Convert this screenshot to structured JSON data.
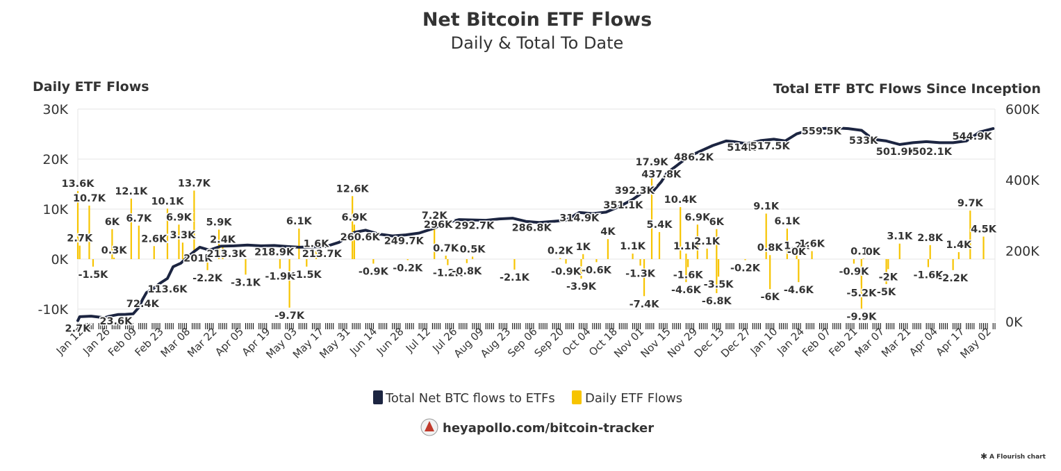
{
  "title": "Net Bitcoin ETF Flows",
  "subtitle": "Daily & Total To Date",
  "footer_link": "heyapollo.com/bitcoin-tracker",
  "credit": "A Flourish chart",
  "colors": {
    "daily": "#f7c400",
    "total": "#1c2541",
    "grid": "#e6e6e6",
    "text": "#333333"
  },
  "legend": [
    {
      "label": "Total Net BTC flows to ETFs",
      "color": "#1c2541"
    },
    {
      "label": "Daily ETF Flows",
      "color": "#f7c400"
    }
  ],
  "chart_data": {
    "type": "bar+line",
    "x_axis": {
      "type": "date",
      "range": [
        "2024-01-11",
        "2025-05-06"
      ],
      "tick_labels": [
        "Jan 12",
        "Jan 26",
        "Feb 09",
        "Feb 23",
        "Mar 08",
        "Mar 22",
        "Apr 05",
        "Apr 19",
        "May 03",
        "May 17",
        "May 31",
        "Jun 14",
        "Jun 28",
        "Jul 12",
        "Jul 26",
        "Aug 09",
        "Aug 23",
        "Sep 06",
        "Sep 20",
        "Oct 04",
        "Oct 18",
        "Nov 01",
        "Nov 15",
        "Nov 29",
        "Dec 13",
        "Dec 27",
        "Jan 10",
        "Jan 24",
        "Feb 07",
        "Feb 21",
        "Mar 07",
        "Mar 21",
        "Apr 04",
        "Apr 17",
        "May 02"
      ]
    },
    "y_left": {
      "label": "Daily ETF Flows",
      "range": [
        -12500,
        30000
      ],
      "ticks": [
        "-10K",
        "0K",
        "10K",
        "20K",
        "30K"
      ]
    },
    "y_right": {
      "label": "Total ETF BTC Flows Since Inception",
      "range": [
        0,
        600000
      ],
      "ticks": [
        "0K",
        "200K",
        "400K",
        "600K"
      ]
    },
    "daily_labels": [
      {
        "date": "2024-01-11",
        "value": 13600,
        "text": "13.6K"
      },
      {
        "date": "2024-01-12",
        "value": 2700,
        "text": "2.7K"
      },
      {
        "date": "2024-01-17",
        "value": 10700,
        "text": "10.7K"
      },
      {
        "date": "2024-01-19",
        "value": -1500,
        "text": "-1.5K"
      },
      {
        "date": "2024-01-29",
        "value": 6000,
        "text": "6K"
      },
      {
        "date": "2024-01-30",
        "value": 300,
        "text": "0.3K"
      },
      {
        "date": "2024-02-08",
        "value": 12100,
        "text": "12.1K"
      },
      {
        "date": "2024-02-12",
        "value": 6700,
        "text": "6.7K"
      },
      {
        "date": "2024-02-20",
        "value": 2600,
        "text": "2.6K"
      },
      {
        "date": "2024-02-27",
        "value": 10100,
        "text": "10.1K"
      },
      {
        "date": "2024-03-04",
        "value": 6900,
        "text": "6.9K"
      },
      {
        "date": "2024-03-06",
        "value": 3300,
        "text": "3.3K"
      },
      {
        "date": "2024-03-12",
        "value": 13700,
        "text": "13.7K"
      },
      {
        "date": "2024-03-19",
        "value": -2200,
        "text": "-2.2K"
      },
      {
        "date": "2024-03-25",
        "value": 5900,
        "text": "5.9K"
      },
      {
        "date": "2024-03-27",
        "value": 2400,
        "text": "2.4K"
      },
      {
        "date": "2024-04-08",
        "value": -3100,
        "text": "-3.1K"
      },
      {
        "date": "2024-04-26",
        "value": -1900,
        "text": "-1.9K"
      },
      {
        "date": "2024-05-06",
        "value": 6100,
        "text": "6.1K"
      },
      {
        "date": "2024-05-01",
        "value": -9700,
        "text": "-9.7K"
      },
      {
        "date": "2024-05-10",
        "value": -1500,
        "text": "-1.5K"
      },
      {
        "date": "2024-05-15",
        "value": 1600,
        "text": "1.6K"
      },
      {
        "date": "2024-06-03",
        "value": 12600,
        "text": "12.6K"
      },
      {
        "date": "2024-06-04",
        "value": 6900,
        "text": "6.9K"
      },
      {
        "date": "2024-06-14",
        "value": -900,
        "text": "-0.9K"
      },
      {
        "date": "2024-07-02",
        "value": -200,
        "text": "-0.2K"
      },
      {
        "date": "2024-07-16",
        "value": 7200,
        "text": "7.2K"
      },
      {
        "date": "2024-07-22",
        "value": 700,
        "text": "0.7K"
      },
      {
        "date": "2024-07-23",
        "value": -1200,
        "text": "-1.2K"
      },
      {
        "date": "2024-08-02",
        "value": -800,
        "text": "-0.8K"
      },
      {
        "date": "2024-08-05",
        "value": 500,
        "text": "0.5K"
      },
      {
        "date": "2024-08-27",
        "value": -2100,
        "text": "-2.1K"
      },
      {
        "date": "2024-09-20",
        "value": 200,
        "text": "0.2K"
      },
      {
        "date": "2024-09-23",
        "value": -900,
        "text": "-0.9K"
      },
      {
        "date": "2024-10-02",
        "value": 1000,
        "text": "1K"
      },
      {
        "date": "2024-10-01",
        "value": -3900,
        "text": "-3.9K"
      },
      {
        "date": "2024-10-09",
        "value": -600,
        "text": "-0.6K"
      },
      {
        "date": "2024-10-15",
        "value": 4000,
        "text": "4K"
      },
      {
        "date": "2024-10-28",
        "value": 1100,
        "text": "1.1K"
      },
      {
        "date": "2024-11-01",
        "value": -1300,
        "text": "-1.3K"
      },
      {
        "date": "2024-11-03",
        "value": -7400,
        "text": "-7.4K"
      },
      {
        "date": "2024-11-07",
        "value": 17900,
        "text": "17.9K"
      },
      {
        "date": "2024-11-11",
        "value": 5400,
        "text": "5.4K"
      },
      {
        "date": "2024-11-22",
        "value": 10400,
        "text": "10.4K"
      },
      {
        "date": "2024-11-25",
        "value": 1100,
        "text": "1.1K"
      },
      {
        "date": "2024-11-26",
        "value": -1600,
        "text": "-1.6K"
      },
      {
        "date": "2024-11-25",
        "value": -4600,
        "text": "-4.6K"
      },
      {
        "date": "2024-12-01",
        "value": 6900,
        "text": "6.9K"
      },
      {
        "date": "2024-12-06",
        "value": 2100,
        "text": "2.1K"
      },
      {
        "date": "2024-12-11",
        "value": 6000,
        "text": "6K"
      },
      {
        "date": "2024-12-12",
        "value": -3500,
        "text": "-3.5K"
      },
      {
        "date": "2024-12-11",
        "value": -6800,
        "text": "-6.8K"
      },
      {
        "date": "2024-12-26",
        "value": -200,
        "text": "-0.2K"
      },
      {
        "date": "2025-01-06",
        "value": 9100,
        "text": "9.1K"
      },
      {
        "date": "2025-01-08",
        "value": 800,
        "text": "0.8K"
      },
      {
        "date": "2025-01-08",
        "value": -6000,
        "text": "-6K"
      },
      {
        "date": "2025-01-17",
        "value": 6100,
        "text": "6.1K"
      },
      {
        "date": "2025-01-22",
        "value": 1200,
        "text": "1.2K"
      },
      {
        "date": "2025-01-22",
        "value": 0,
        "text": "-0K"
      },
      {
        "date": "2025-01-23",
        "value": -4600,
        "text": "-4.6K"
      },
      {
        "date": "2025-01-30",
        "value": 1600,
        "text": "1.6K"
      },
      {
        "date": "2025-02-21",
        "value": -900,
        "text": "-0.9K"
      },
      {
        "date": "2025-02-26",
        "value": 100,
        "text": "0.1K"
      },
      {
        "date": "2025-03-03",
        "value": 0,
        "text": "0K"
      },
      {
        "date": "2025-02-25",
        "value": -5200,
        "text": "-5.2K"
      },
      {
        "date": "2025-02-25",
        "value": -9900,
        "text": "-9.9K"
      },
      {
        "date": "2025-03-11",
        "value": -2000,
        "text": "-2K"
      },
      {
        "date": "2025-03-10",
        "value": -5000,
        "text": "-5K"
      },
      {
        "date": "2025-03-17",
        "value": 3100,
        "text": "3.1K"
      },
      {
        "date": "2025-04-01",
        "value": -1600,
        "text": "-1.6K"
      },
      {
        "date": "2025-04-02",
        "value": 2800,
        "text": "2.8K"
      },
      {
        "date": "2025-04-14",
        "value": -2200,
        "text": "-2.2K"
      },
      {
        "date": "2025-04-17",
        "value": 1400,
        "text": "1.4K"
      },
      {
        "date": "2025-04-23",
        "value": 9700,
        "text": "9.7K"
      },
      {
        "date": "2025-04-30",
        "value": 4500,
        "text": "4.5K"
      }
    ],
    "total_labels": [
      {
        "date": "2024-01-11",
        "value": 2700,
        "text": "2.7K"
      },
      {
        "date": "2024-01-31",
        "value": 23600,
        "text": "23.6K"
      },
      {
        "date": "2024-02-14",
        "value": 72400,
        "text": "72.4K"
      },
      {
        "date": "2024-02-27",
        "value": 113600,
        "text": "113.6K"
      },
      {
        "date": "2024-03-14",
        "value": 201000,
        "text": "201K"
      },
      {
        "date": "2024-03-29",
        "value": 213300,
        "text": "213.3K"
      },
      {
        "date": "2024-04-23",
        "value": 218900,
        "text": "218.9K"
      },
      {
        "date": "2024-05-18",
        "value": 213700,
        "text": "213.7K"
      },
      {
        "date": "2024-06-07",
        "value": 260600,
        "text": "260.6K"
      },
      {
        "date": "2024-06-30",
        "value": 249700,
        "text": "249.7K"
      },
      {
        "date": "2024-07-18",
        "value": 296000,
        "text": "296K"
      },
      {
        "date": "2024-08-06",
        "value": 292700,
        "text": "292.7K"
      },
      {
        "date": "2024-09-05",
        "value": 286800,
        "text": "286.8K"
      },
      {
        "date": "2024-09-30",
        "value": 314900,
        "text": "314.9K"
      },
      {
        "date": "2024-10-23",
        "value": 351100,
        "text": "351.1K"
      },
      {
        "date": "2024-10-29",
        "value": 392300,
        "text": "392.3K"
      },
      {
        "date": "2024-11-12",
        "value": 437800,
        "text": "437.8K"
      },
      {
        "date": "2024-11-29",
        "value": 486200,
        "text": "486.2K"
      },
      {
        "date": "2024-12-24",
        "value": 514000,
        "text": "514K"
      },
      {
        "date": "2025-01-08",
        "value": 517500,
        "text": "517.5K"
      },
      {
        "date": "2025-02-04",
        "value": 559500,
        "text": "559.5K"
      },
      {
        "date": "2025-02-26",
        "value": 533000,
        "text": "533K"
      },
      {
        "date": "2025-03-15",
        "value": 501900,
        "text": "501.9K"
      },
      {
        "date": "2025-04-03",
        "value": 502100,
        "text": "502.1K"
      },
      {
        "date": "2025-04-24",
        "value": 544900,
        "text": "544.9K"
      }
    ],
    "total_series": {
      "name": "Total Net BTC flows to ETFs",
      "points": [
        [
          "2024-01-11",
          2700
        ],
        [
          "2024-01-12",
          14000
        ],
        [
          "2024-01-18",
          15500
        ],
        [
          "2024-01-25",
          11000
        ],
        [
          "2024-01-27",
          14500
        ],
        [
          "2024-02-01",
          20000
        ],
        [
          "2024-02-05",
          20500
        ],
        [
          "2024-02-09",
          22000
        ],
        [
          "2024-02-12",
          40000
        ],
        [
          "2024-02-14",
          63000
        ],
        [
          "2024-02-16",
          82000
        ],
        [
          "2024-02-20",
          95000
        ],
        [
          "2024-02-23",
          108000
        ],
        [
          "2024-02-27",
          122000
        ],
        [
          "2024-03-01",
          155000
        ],
        [
          "2024-03-05",
          165000
        ],
        [
          "2024-03-08",
          180000
        ],
        [
          "2024-03-12",
          198000
        ],
        [
          "2024-03-15",
          210000
        ],
        [
          "2024-03-20",
          202000
        ],
        [
          "2024-03-26",
          213000
        ],
        [
          "2024-04-02",
          214000
        ],
        [
          "2024-04-09",
          216000
        ],
        [
          "2024-04-16",
          214000
        ],
        [
          "2024-04-23",
          215000
        ],
        [
          "2024-04-30",
          212000
        ],
        [
          "2024-05-06",
          210000
        ],
        [
          "2024-05-14",
          211000
        ],
        [
          "2024-05-20",
          212000
        ],
        [
          "2024-05-27",
          224000
        ],
        [
          "2024-06-04",
          252000
        ],
        [
          "2024-06-10",
          258000
        ],
        [
          "2024-06-17",
          247000
        ],
        [
          "2024-06-24",
          242000
        ],
        [
          "2024-07-01",
          245000
        ],
        [
          "2024-07-08",
          250000
        ],
        [
          "2024-07-15",
          262000
        ],
        [
          "2024-07-22",
          279000
        ],
        [
          "2024-07-29",
          288000
        ],
        [
          "2024-08-05",
          287000
        ],
        [
          "2024-08-12",
          286000
        ],
        [
          "2024-08-19",
          290000
        ],
        [
          "2024-08-26",
          292000
        ],
        [
          "2024-09-02",
          283000
        ],
        [
          "2024-09-09",
          280000
        ],
        [
          "2024-09-16",
          283000
        ],
        [
          "2024-09-23",
          286000
        ],
        [
          "2024-09-30",
          308000
        ],
        [
          "2024-10-07",
          305000
        ],
        [
          "2024-10-14",
          309000
        ],
        [
          "2024-10-21",
          325000
        ],
        [
          "2024-10-28",
          345000
        ],
        [
          "2024-11-01",
          360000
        ],
        [
          "2024-11-04",
          378000
        ],
        [
          "2024-11-08",
          370000
        ],
        [
          "2024-11-12",
          395000
        ],
        [
          "2024-11-15",
          420000
        ],
        [
          "2024-11-20",
          440000
        ],
        [
          "2024-11-26",
          465000
        ],
        [
          "2024-12-02",
          480000
        ],
        [
          "2024-12-09",
          497000
        ],
        [
          "2024-12-16",
          510000
        ],
        [
          "2024-12-20",
          508000
        ],
        [
          "2024-12-27",
          502000
        ],
        [
          "2025-01-03",
          511000
        ],
        [
          "2025-01-10",
          515000
        ],
        [
          "2025-01-16",
          510000
        ],
        [
          "2025-01-22",
          530000
        ],
        [
          "2025-01-28",
          540000
        ],
        [
          "2025-02-04",
          545000
        ],
        [
          "2025-02-11",
          547000
        ],
        [
          "2025-02-18",
          545000
        ],
        [
          "2025-02-25",
          540000
        ],
        [
          "2025-03-03",
          515000
        ],
        [
          "2025-03-10",
          510000
        ],
        [
          "2025-03-17",
          500000
        ],
        [
          "2025-03-24",
          505000
        ],
        [
          "2025-03-31",
          508000
        ],
        [
          "2025-04-07",
          505000
        ],
        [
          "2025-04-14",
          505000
        ],
        [
          "2025-04-21",
          510000
        ],
        [
          "2025-04-28",
          535000
        ],
        [
          "2025-05-05",
          545000
        ]
      ]
    }
  }
}
